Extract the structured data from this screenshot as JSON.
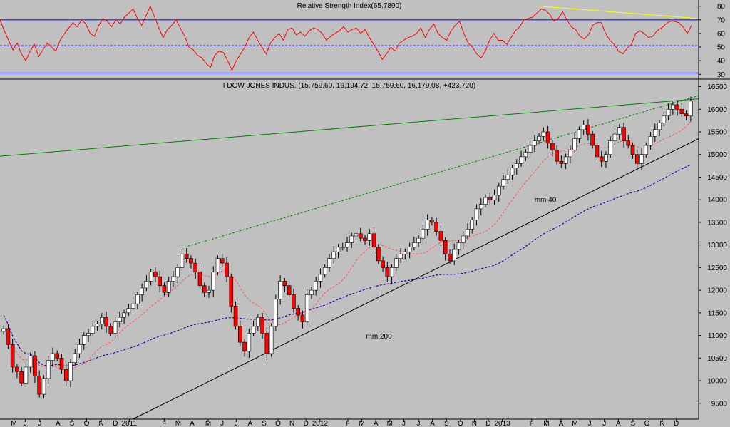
{
  "chart_data": [
    {
      "name": "rsi",
      "type": "line",
      "title": "Relative Strength Index(65.7890)",
      "ylim": [
        27,
        83
      ],
      "yticks": [
        "80",
        "70",
        "60",
        "50",
        "40",
        "30"
      ],
      "ytick_values": [
        80,
        70,
        60,
        50,
        40,
        30
      ],
      "levels": {
        "upper": 70,
        "middle": 51,
        "lower": 31
      },
      "colors": {
        "line": "#ff0000",
        "level": "#0000ff",
        "divergence": "#ffff00"
      },
      "divergence_line": {
        "from": [
          0.772,
          80
        ],
        "to": [
          1.0,
          71
        ]
      },
      "values": [
        70,
        62,
        55,
        48,
        53,
        45,
        40,
        47,
        52,
        43,
        48,
        53,
        50,
        47,
        55,
        60,
        64,
        68,
        65,
        70,
        67,
        60,
        58,
        66,
        71,
        69,
        65,
        70,
        67,
        72,
        75,
        78,
        71,
        66,
        73,
        80,
        72,
        64,
        57,
        63,
        66,
        70,
        64,
        58,
        50,
        48,
        44,
        42,
        38,
        35,
        44,
        47,
        46,
        40,
        33,
        40,
        45,
        50,
        57,
        61,
        55,
        50,
        45,
        53,
        57,
        60,
        55,
        63,
        64,
        59,
        61,
        58,
        62,
        64,
        63,
        60,
        55,
        58,
        60,
        62,
        65,
        61,
        63,
        64,
        60,
        63,
        57,
        52,
        47,
        41,
        45,
        50,
        47,
        53,
        55,
        57,
        58,
        60,
        64,
        57,
        63,
        67,
        60,
        57,
        55,
        62,
        66,
        69,
        60,
        53,
        50,
        45,
        42,
        47,
        55,
        60,
        55,
        55,
        52,
        57,
        62,
        65,
        70,
        71,
        72,
        75,
        78,
        77,
        74,
        69,
        71,
        76,
        70,
        65,
        63,
        58,
        56,
        59,
        66,
        68,
        68,
        60,
        55,
        52,
        47,
        45,
        49,
        52,
        60,
        62,
        60,
        57,
        58,
        62,
        64,
        67,
        69,
        69,
        68,
        65,
        60,
        66
      ]
    },
    {
      "name": "price",
      "type": "candlestick",
      "title": "I DOW JONES INDUS. (15,759.60, 16,194.72, 15,759.60, 16,179.08, +423.720)",
      "ylim": [
        9150,
        16650
      ],
      "yticks": [
        "16500",
        "16000",
        "15500",
        "15000",
        "14500",
        "14000",
        "13500",
        "13000",
        "12500",
        "12000",
        "11500",
        "11000",
        "10500",
        "10000",
        "9500"
      ],
      "ytick_values": [
        16500,
        16000,
        15500,
        15000,
        14500,
        14000,
        13500,
        13000,
        12500,
        12000,
        11500,
        11000,
        10500,
        10000,
        9500
      ],
      "x_labels": [
        "M",
        "J",
        "J",
        "A",
        "S",
        "O",
        "N",
        "D",
        "2011",
        "F",
        "M",
        "A",
        "M",
        "J",
        "J",
        "A",
        "S",
        "O",
        "N",
        "D",
        "2012",
        "F",
        "M",
        "A",
        "M",
        "J",
        "J",
        "A",
        "S",
        "O",
        "N",
        "D",
        "2013",
        "F",
        "M",
        "A",
        "M",
        "J",
        "J",
        "A",
        "S",
        "O",
        "N",
        "D"
      ],
      "x_label_pos": [
        0.02,
        0.036,
        0.057,
        0.083,
        0.103,
        0.124,
        0.145,
        0.165,
        0.185,
        0.235,
        0.255,
        0.275,
        0.298,
        0.318,
        0.338,
        0.358,
        0.378,
        0.398,
        0.418,
        0.438,
        0.458,
        0.498,
        0.518,
        0.538,
        0.558,
        0.578,
        0.599,
        0.619,
        0.639,
        0.659,
        0.679,
        0.699,
        0.719,
        0.761,
        0.782,
        0.803,
        0.823,
        0.844,
        0.865,
        0.885,
        0.906,
        0.926,
        0.948,
        0.968
      ],
      "colors": {
        "up": "#ffffff",
        "down": "#ff0000",
        "outline": "#000000",
        "resistance": "#008000",
        "support": "#000000",
        "ma40": "#ff5555",
        "ma200": "#330099"
      },
      "annotations": [
        {
          "text": "mm 40",
          "x": 0.765,
          "y": 13950,
          "color": "#ff5555"
        },
        {
          "text": "mm 200",
          "x": 0.524,
          "y": 10930,
          "color": "#330099"
        }
      ],
      "resistance_line": {
        "from": [
          -0.01,
          14950
        ],
        "to": [
          1.0,
          16230
        ]
      },
      "upper_channel": {
        "from": [
          0.264,
          12950
        ],
        "to": [
          1.0,
          16300
        ]
      },
      "support_line": {
        "from": [
          0.19,
          9150
        ],
        "to": [
          1.0,
          15350
        ]
      },
      "closes": [
        11150,
        10800,
        10300,
        10200,
        9950,
        10300,
        10550,
        10100,
        9700,
        10050,
        10450,
        10600,
        10500,
        10250,
        10000,
        10400,
        10600,
        10800,
        11000,
        11050,
        11200,
        11250,
        11400,
        11200,
        11050,
        11300,
        11400,
        11500,
        11600,
        11700,
        11900,
        12050,
        12200,
        12400,
        12300,
        12100,
        11950,
        12200,
        12300,
        12500,
        12800,
        12700,
        12600,
        12400,
        12100,
        11950,
        12000,
        12400,
        12700,
        12600,
        12300,
        11650,
        11200,
        10850,
        10650,
        11050,
        11200,
        11400,
        11050,
        10600,
        11200,
        11800,
        12200,
        12100,
        11900,
        11600,
        11450,
        11300,
        11900,
        12000,
        12200,
        12350,
        12500,
        12700,
        12850,
        12950,
        12950,
        13050,
        13200,
        13250,
        13150,
        13100,
        13250,
        12950,
        12650,
        12500,
        12300,
        12500,
        12700,
        12800,
        12850,
        12950,
        13050,
        13150,
        13350,
        13550,
        13500,
        13300,
        13100,
        12800,
        12650,
        12900,
        13050,
        13200,
        13350,
        13550,
        13800,
        13900,
        14050,
        14000,
        14100,
        14300,
        14450,
        14550,
        14700,
        14800,
        14950,
        15050,
        15200,
        15300,
        15400,
        15500,
        15250,
        15100,
        14850,
        14800,
        14950,
        15100,
        15350,
        15550,
        15650,
        15450,
        15200,
        14950,
        14850,
        15000,
        15300,
        15450,
        15600,
        15300,
        15200,
        15000,
        14800,
        15000,
        15200,
        15400,
        15550,
        15700,
        15850,
        16000,
        16100,
        16000,
        15900,
        15850,
        16179
      ]
    }
  ]
}
